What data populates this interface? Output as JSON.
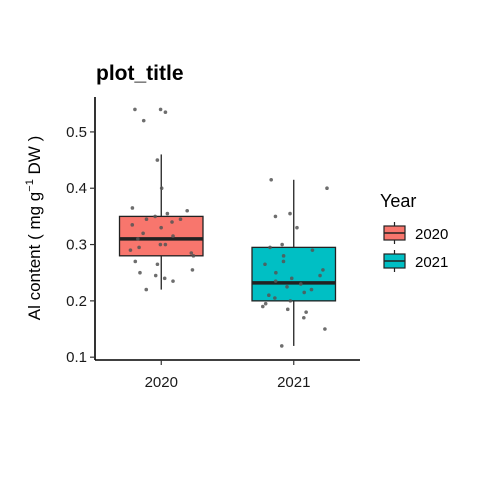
{
  "chart_data": {
    "type": "box",
    "title": "plot_title",
    "ylabel": {
      "prefix": "Al content ( mg g",
      "superscript": "−1",
      "suffix": " DW )"
    },
    "xlabel": "",
    "ylim": [
      0.095,
      0.562
    ],
    "yticks": [
      0.1,
      0.2,
      0.3,
      0.4,
      0.5
    ],
    "ytick_labels": [
      "0.1",
      "0.2",
      "0.3",
      "0.4",
      "0.5"
    ],
    "categories": [
      "2020",
      "2021"
    ],
    "legend": {
      "title": "Year",
      "position": "right"
    },
    "grid": false,
    "series": [
      {
        "name": "2020",
        "color": "#F8766D",
        "whisker_low": 0.22,
        "q1": 0.28,
        "median": 0.31,
        "q3": 0.35,
        "whisker_high": 0.46,
        "points": [
          0.54,
          0.535,
          0.54,
          0.52,
          0.45,
          0.4,
          0.365,
          0.36,
          0.355,
          0.35,
          0.345,
          0.345,
          0.34,
          0.335,
          0.33,
          0.32,
          0.315,
          0.31,
          0.3,
          0.3,
          0.295,
          0.29,
          0.285,
          0.28,
          0.27,
          0.265,
          0.255,
          0.25,
          0.245,
          0.24,
          0.235,
          0.22
        ]
      },
      {
        "name": "2021",
        "color": "#00BFC4",
        "whisker_low": 0.12,
        "q1": 0.2,
        "median": 0.232,
        "q3": 0.295,
        "whisker_high": 0.415,
        "points": [
          0.415,
          0.4,
          0.355,
          0.35,
          0.33,
          0.3,
          0.295,
          0.29,
          0.28,
          0.27,
          0.265,
          0.255,
          0.25,
          0.245,
          0.24,
          0.235,
          0.23,
          0.225,
          0.22,
          0.215,
          0.21,
          0.205,
          0.2,
          0.195,
          0.19,
          0.185,
          0.18,
          0.17,
          0.15,
          0.12
        ]
      }
    ]
  }
}
